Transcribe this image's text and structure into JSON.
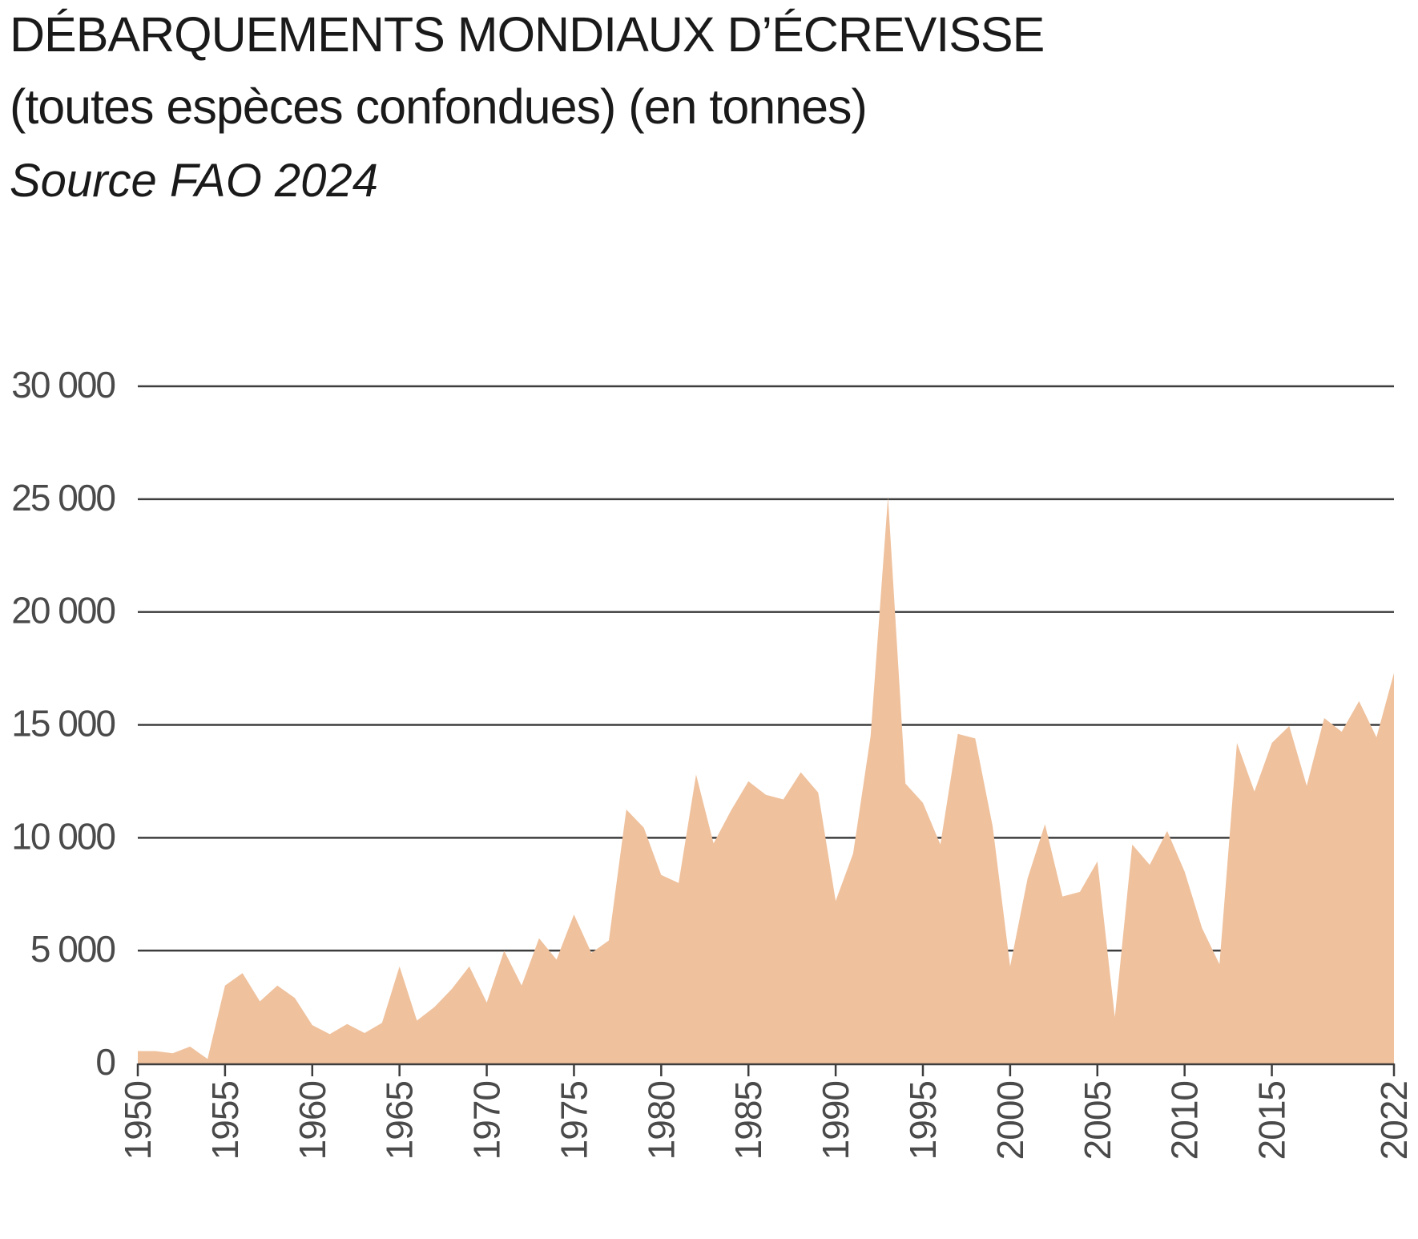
{
  "title_line1": "DÉBARQUEMENTS MONDIAUX D’ÉCREVISSE",
  "title_line2": "(toutes espèces confondues) (en tonnes)",
  "subtitle": "Source FAO 2024",
  "colors": {
    "area": "#efc19d",
    "grid": "#3d3d3d",
    "text": "#1a1a1a",
    "tick_text": "#4a4a4a"
  },
  "chart_data": {
    "type": "area",
    "title": "DÉBARQUEMENTS MONDIAUX D’ÉCREVISSE (toutes espèces confondues) (en tonnes)",
    "xlabel": "",
    "ylabel": "",
    "ylim": [
      0,
      30000
    ],
    "xlim": [
      1950,
      2022
    ],
    "grid": true,
    "legend": "none",
    "y_ticks": [
      0,
      5000,
      10000,
      15000,
      20000,
      25000,
      30000
    ],
    "y_tick_labels": [
      "0",
      "5 000",
      "10 000",
      "15 000",
      "20 000",
      "25 000",
      "30 000"
    ],
    "x_ticks": [
      1950,
      1955,
      1960,
      1965,
      1970,
      1975,
      1980,
      1985,
      1990,
      1995,
      2000,
      2005,
      2010,
      2015,
      2022
    ],
    "x_tick_labels": [
      "1950",
      "1955",
      "1960",
      "1965",
      "1970",
      "1975",
      "1980",
      "1985",
      "1990",
      "1995",
      "2000",
      "2005",
      "2010",
      "2015",
      "2022"
    ],
    "x": [
      1950,
      1951,
      1952,
      1953,
      1954,
      1955,
      1956,
      1957,
      1958,
      1959,
      1960,
      1961,
      1962,
      1963,
      1964,
      1965,
      1966,
      1967,
      1968,
      1969,
      1970,
      1971,
      1972,
      1973,
      1974,
      1975,
      1976,
      1977,
      1978,
      1979,
      1980,
      1981,
      1982,
      1983,
      1984,
      1985,
      1986,
      1987,
      1988,
      1989,
      1990,
      1991,
      1992,
      1993,
      1994,
      1995,
      1996,
      1997,
      1998,
      1999,
      2000,
      2001,
      2002,
      2003,
      2004,
      2005,
      2006,
      2007,
      2008,
      2009,
      2010,
      2011,
      2012,
      2013,
      2014,
      2015,
      2016,
      2017,
      2018,
      2019,
      2020,
      2021,
      2022
    ],
    "values": [
      550,
      550,
      450,
      750,
      200,
      3450,
      4000,
      2750,
      3450,
      2900,
      1700,
      1300,
      1750,
      1350,
      1800,
      4300,
      1900,
      2500,
      3300,
      4300,
      2700,
      5000,
      3450,
      5550,
      4600,
      6600,
      4900,
      5450,
      11250,
      10450,
      8350,
      8000,
      12800,
      9750,
      11200,
      12500,
      11900,
      11700,
      12900,
      12000,
      7200,
      9300,
      14500,
      25100,
      12400,
      11550,
      9700,
      14600,
      14400,
      10500,
      4300,
      8200,
      10600,
      7400,
      7600,
      8950,
      2050,
      9700,
      8800,
      10300,
      8500,
      6000,
      4400,
      14200,
      12050,
      14200,
      14950,
      12300,
      15300,
      14700,
      16050,
      14450,
      17300
    ]
  }
}
